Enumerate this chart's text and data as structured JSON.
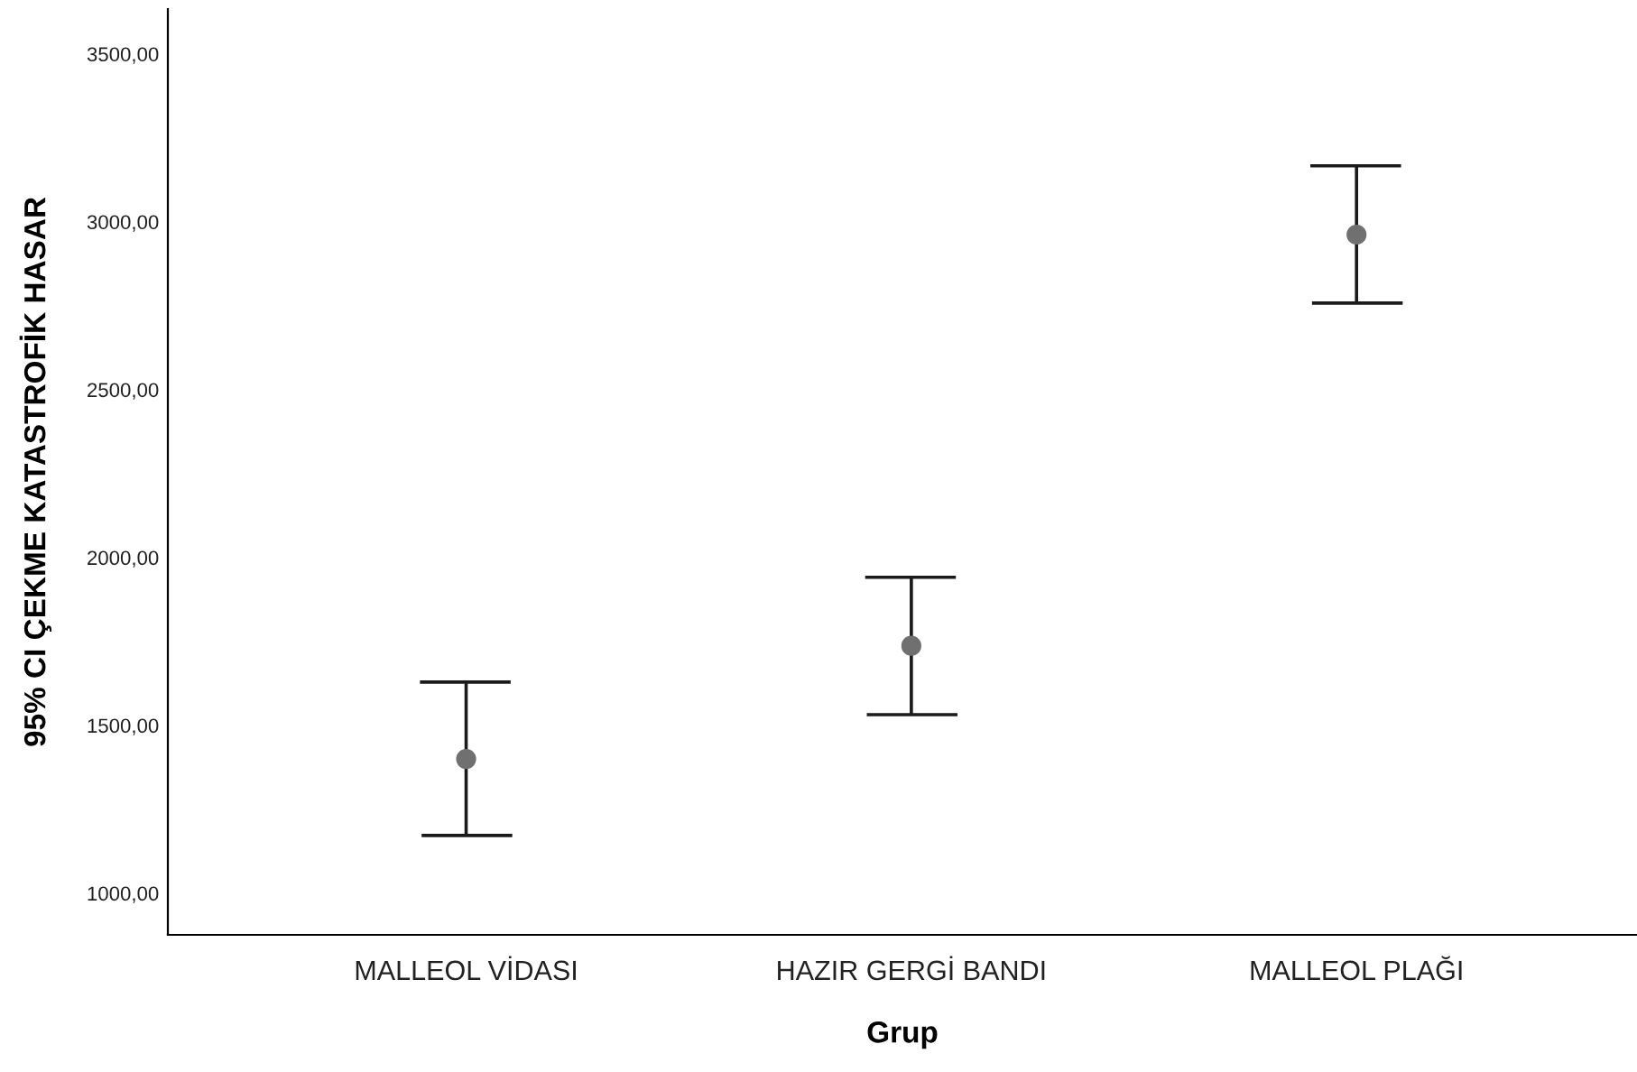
{
  "chart_data": {
    "type": "scatter",
    "xlabel": "Grup",
    "ylabel": "95% CI ÇEKME KATASTROFİK HASAR",
    "categories": [
      "MALLEOL VİDASI",
      "HAZIR GERGİ BANDI",
      "MALLEOL PLAĞI"
    ],
    "series": [
      {
        "color": "#707070",
        "values": [
          1400,
          1737,
          2962
        ],
        "errors": [
          [
            1172,
            1629
          ],
          [
            1532,
            1941
          ],
          [
            2758,
            3167
          ]
        ]
      }
    ],
    "marker": "circle",
    "grid": false,
    "legend": false,
    "ylim": [
      876,
      3634
    ],
    "yticks": [
      {
        "value": 1000,
        "label": "1000,00"
      },
      {
        "value": 1500,
        "label": "1500,00"
      },
      {
        "value": 2000,
        "label": "2000,00"
      },
      {
        "value": 2500,
        "label": "2500,00"
      },
      {
        "value": 3000,
        "label": "3000,00"
      },
      {
        "value": 3500,
        "label": "3500,00"
      }
    ]
  }
}
